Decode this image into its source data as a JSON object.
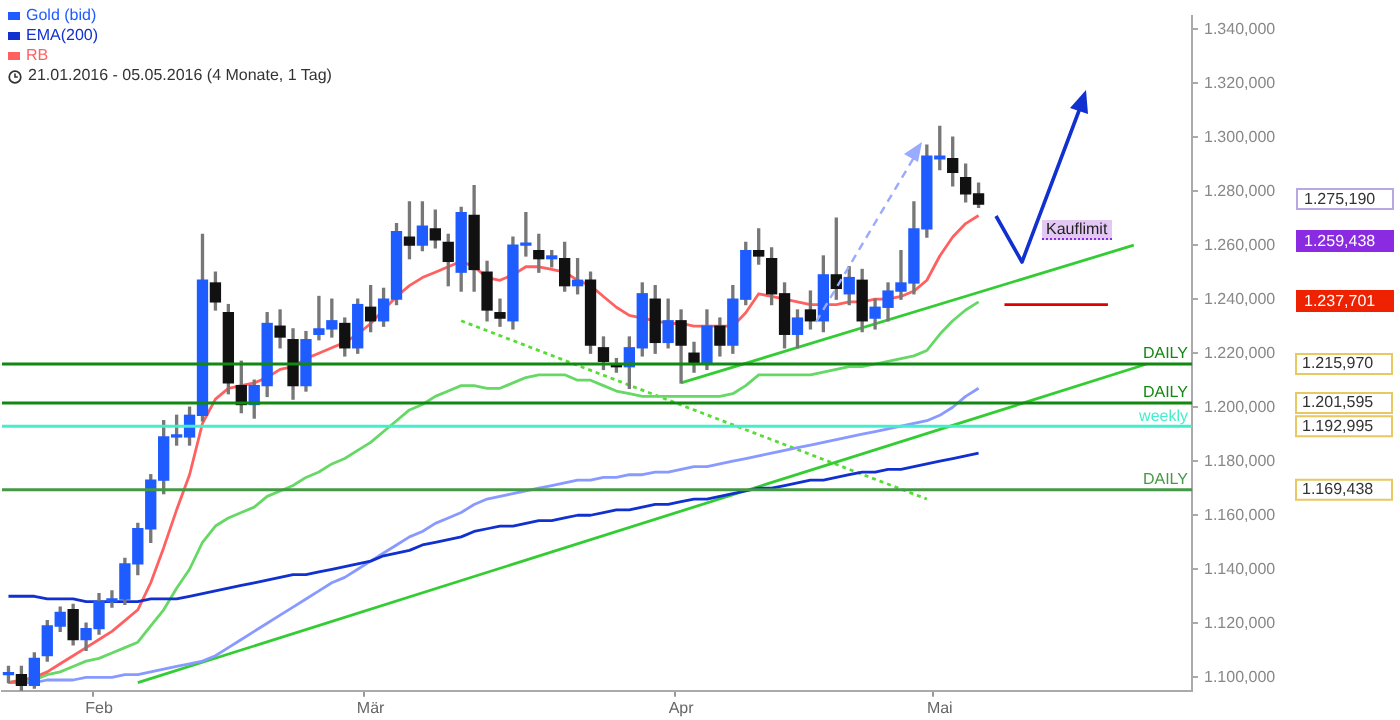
{
  "chart_data": {
    "type": "candlestick",
    "subtitle": "21.01.2016 - 05.05.2016 (4 Monate, 1 Tag)",
    "legend": "top left",
    "categories": [
      null,
      null,
      null,
      null,
      null,
      null,
      null,
      "Feb",
      null,
      null,
      null,
      null,
      null,
      null,
      null,
      null,
      null,
      null,
      null,
      null,
      null,
      null,
      null,
      null,
      null,
      null,
      null,
      null,
      "Mär",
      null,
      null,
      null,
      null,
      null,
      null,
      null,
      null,
      null,
      null,
      null,
      null,
      null,
      null,
      null,
      null,
      null,
      null,
      null,
      null,
      null,
      null,
      null,
      "Apr",
      null,
      null,
      null,
      null,
      null,
      null,
      null,
      null,
      null,
      null,
      null,
      null,
      null,
      null,
      null,
      null,
      null,
      null,
      null,
      "Mai",
      null,
      null,
      null,
      null,
      null,
      null,
      null,
      null,
      null,
      null,
      null,
      null,
      null,
      null,
      null,
      null,
      null,
      null,
      null
    ],
    "ylim": [
      1095,
      1345
    ],
    "yticks": [
      {
        "value": 1100,
        "label": "1.100,000"
      },
      {
        "value": 1120,
        "label": "1.120,000"
      },
      {
        "value": 1140,
        "label": "1.140,000"
      },
      {
        "value": 1160,
        "label": "1.160,000"
      },
      {
        "value": 1180,
        "label": "1.180,000"
      },
      {
        "value": 1200,
        "label": "1.200,000"
      },
      {
        "value": 1220,
        "label": "1.220,000"
      },
      {
        "value": 1240,
        "label": "1.240,000"
      },
      {
        "value": 1260,
        "label": "1.260,000"
      },
      {
        "value": 1280,
        "label": "1.280,000"
      },
      {
        "value": 1300,
        "label": "1.300,000"
      },
      {
        "value": 1320,
        "label": "1.320,000"
      },
      {
        "value": 1340,
        "label": "1.340,000"
      }
    ],
    "series": [
      {
        "name": "Gold (bid)",
        "type": "candlestick",
        "color": "#1f5cff",
        "colors": [
          "#1f5cff",
          "#111111",
          "#1f5cff",
          "#1f5cff",
          "#1f5cff",
          "#111111",
          "#1f5cff",
          "#1f5cff",
          "#1f5cff",
          "#1f5cff",
          "#1f5cff",
          "#1f5cff",
          "#1f5cff",
          "#1f5cff",
          "#1f5cff",
          "#1f5cff",
          "#111111",
          "#111111",
          "#111111",
          "#1f5cff",
          "#1f5cff",
          "#111111",
          "#111111",
          "#1f5cff",
          "#1f5cff",
          "#1f5cff",
          "#111111",
          "#1f5cff",
          "#111111",
          "#1f5cff",
          "#1f5cff",
          "#111111",
          "#1f5cff",
          "#111111",
          "#111111",
          "#1f5cff",
          "#111111",
          "#111111",
          "#111111",
          "#1f5cff",
          "#1f5cff",
          "#111111",
          "#1f5cff",
          "#111111",
          "#1f5cff",
          "#111111",
          "#111111",
          "#111111",
          "#1f5cff",
          "#1f5cff",
          "#111111",
          "#1f5cff",
          "#111111",
          "#111111",
          "#1f5cff",
          "#111111",
          "#1f5cff",
          "#1f5cff",
          "#111111",
          "#111111",
          "#111111",
          "#1f5cff",
          "#111111",
          "#1f5cff",
          "#111111",
          "#1f5cff",
          "#111111",
          "#1f5cff",
          "#1f5cff",
          "#1f5cff",
          "#1f5cff",
          "#1f5cff",
          "#1f5cff",
          "#111111",
          "#111111",
          "#111111",
          null,
          null,
          null,
          null,
          null,
          null,
          null,
          null,
          null,
          null,
          null,
          null,
          null,
          null,
          null,
          null
        ],
        "ohlc": [
          [
            1101,
            1104,
            1098,
            1101
          ],
          [
            1101,
            1104,
            1094,
            1097
          ],
          [
            1097,
            1109,
            1096,
            1107
          ],
          [
            1108,
            1121,
            1106,
            1119
          ],
          [
            1119,
            1126,
            1117,
            1124
          ],
          [
            1125,
            1127,
            1112,
            1114
          ],
          [
            1114,
            1120,
            1110,
            1118
          ],
          [
            1118,
            1131,
            1116,
            1128
          ],
          [
            1128,
            1132,
            1126,
            1129
          ],
          [
            1129,
            1144,
            1127,
            1142
          ],
          [
            1142,
            1157,
            1138,
            1155
          ],
          [
            1155,
            1175,
            1150,
            1173
          ],
          [
            1173,
            1195,
            1168,
            1189
          ],
          [
            1189,
            1197,
            1186,
            1189
          ],
          [
            1189,
            1200,
            1186,
            1197
          ],
          [
            1197,
            1264,
            1195,
            1247
          ],
          [
            1246,
            1250,
            1236,
            1239
          ],
          [
            1235,
            1238,
            1205,
            1209
          ],
          [
            1208,
            1217,
            1198,
            1201
          ],
          [
            1201,
            1210,
            1196,
            1208
          ],
          [
            1208,
            1235,
            1204,
            1231
          ],
          [
            1230,
            1236,
            1222,
            1226
          ],
          [
            1225,
            1229,
            1203,
            1208
          ],
          [
            1208,
            1228,
            1206,
            1225
          ],
          [
            1227,
            1241,
            1225,
            1229
          ],
          [
            1229,
            1240,
            1226,
            1232
          ],
          [
            1231,
            1233,
            1219,
            1222
          ],
          [
            1222,
            1240,
            1220,
            1238
          ],
          [
            1237,
            1245,
            1228,
            1232
          ],
          [
            1232,
            1244,
            1230,
            1240
          ],
          [
            1240,
            1268,
            1238,
            1265
          ],
          [
            1263,
            1276,
            1255,
            1260
          ],
          [
            1260,
            1276,
            1258,
            1267
          ],
          [
            1266,
            1273,
            1259,
            1262
          ],
          [
            1261,
            1264,
            1245,
            1254
          ],
          [
            1250,
            1274,
            1243,
            1272
          ],
          [
            1271,
            1282,
            1243,
            1251
          ],
          [
            1250,
            1254,
            1232,
            1236
          ],
          [
            1235,
            1240,
            1230,
            1233
          ],
          [
            1232,
            1263,
            1229,
            1260
          ],
          [
            1260,
            1272,
            1256,
            1260
          ],
          [
            1258,
            1264,
            1250,
            1255
          ],
          [
            1255,
            1258,
            1252,
            1256
          ],
          [
            1255,
            1261,
            1243,
            1245
          ],
          [
            1245,
            1255,
            1242,
            1247
          ],
          [
            1247,
            1250,
            1220,
            1223
          ],
          [
            1222,
            1226,
            1214,
            1217
          ],
          [
            1216,
            1218,
            1213,
            1215
          ],
          [
            1215,
            1226,
            1207,
            1222
          ],
          [
            1222,
            1246,
            1219,
            1242
          ],
          [
            1240,
            1245,
            1220,
            1224
          ],
          [
            1224,
            1240,
            1222,
            1232
          ],
          [
            1232,
            1236,
            1209,
            1223
          ],
          [
            1220,
            1224,
            1213,
            1216
          ],
          [
            1216,
            1236,
            1214,
            1230
          ],
          [
            1230,
            1233,
            1219,
            1223
          ],
          [
            1223,
            1245,
            1220,
            1240
          ],
          [
            1240,
            1261,
            1238,
            1258
          ],
          [
            1258,
            1266,
            1253,
            1256
          ],
          [
            1255,
            1259,
            1238,
            1242
          ],
          [
            1242,
            1246,
            1222,
            1227
          ],
          [
            1227,
            1236,
            1222,
            1233
          ],
          [
            1236,
            1243,
            1229,
            1232
          ],
          [
            1232,
            1256,
            1228,
            1249
          ],
          [
            1249,
            1270,
            1240,
            1244
          ],
          [
            1242,
            1252,
            1238,
            1248
          ],
          [
            1247,
            1251,
            1228,
            1232
          ],
          [
            1233,
            1240,
            1229,
            1237
          ],
          [
            1237,
            1246,
            1232,
            1243
          ],
          [
            1243,
            1258,
            1240,
            1246
          ],
          [
            1246,
            1276,
            1242,
            1266
          ],
          [
            1266,
            1297,
            1263,
            1293
          ],
          [
            1292,
            1304,
            1288,
            1293
          ],
          [
            1292,
            1300,
            1282,
            1287
          ],
          [
            1285,
            1290,
            1276,
            1279
          ],
          [
            1279,
            1283,
            1274,
            1275.19
          ],
          null,
          null,
          null,
          null,
          null,
          null,
          null,
          null,
          null,
          null,
          null,
          null,
          null,
          null,
          null,
          null
        ]
      },
      {
        "name": "EMA(200)",
        "type": "line",
        "color": "#1030d0",
        "values": [
          1130,
          1130,
          1130,
          1129,
          1129,
          1129,
          1128,
          1128,
          1128,
          1128,
          1128,
          1129,
          1129,
          1129,
          1130,
          1131,
          1132,
          1133,
          1134,
          1135,
          1136,
          1137,
          1138,
          1138,
          1139,
          1140,
          1141,
          1142,
          1143,
          1145,
          1146,
          1147,
          1149,
          1150,
          1151,
          1152,
          1154,
          1155,
          1156,
          1156,
          1157,
          1158,
          1158,
          1159,
          1160,
          1160,
          1161,
          1162,
          1162,
          1163,
          1164,
          1164,
          1165,
          1166,
          1166,
          1167,
          1168,
          1169,
          1170,
          1170,
          1171,
          1172,
          1173,
          1173,
          1174,
          1175,
          1176,
          1176,
          1177,
          1177,
          1178,
          1179,
          1180,
          1181,
          1182,
          1183,
          null,
          null,
          null,
          null,
          null,
          null,
          null,
          null,
          null,
          null,
          null,
          null,
          null,
          null,
          null,
          null
        ]
      },
      {
        "name": "RB",
        "type": "line",
        "color": "#ff6060",
        "values": [
          1098,
          1099,
          1100,
          1102,
          1105,
          1108,
          1111,
          1114,
          1117,
          1121,
          1125,
          1135,
          1148,
          1162,
          1175,
          1194,
          1203,
          1207,
          1208,
          1209,
          1211,
          1214,
          1215,
          1218,
          1220,
          1222,
          1224,
          1227,
          1231,
          1236,
          1241,
          1245,
          1248,
          1250,
          1252,
          1254,
          1252,
          1248,
          1247,
          1249,
          1252,
          1252,
          1251,
          1250,
          1247,
          1245,
          1241,
          1237,
          1234,
          1233,
          1232,
          1231,
          1231,
          1230,
          1230,
          1230,
          1230,
          1235,
          1242,
          1241,
          1240,
          1239,
          1238,
          1238,
          1238,
          1239,
          1239,
          1240,
          1240,
          1241,
          1243,
          1247,
          1256,
          1263,
          1268,
          1271,
          null,
          null,
          null,
          null,
          null,
          null,
          null,
          null,
          null,
          null,
          null,
          null,
          null,
          null,
          null,
          null
        ]
      },
      {
        "type": "line",
        "color": "#66d866",
        "values": [
          1098,
          1099,
          1099,
          1101,
          1102,
          1104,
          1106,
          1107,
          1109,
          1111,
          1113,
          1119,
          1125,
          1133,
          1140,
          1150,
          1156,
          1159,
          1161,
          1163,
          1167,
          1169,
          1171,
          1174,
          1176,
          1179,
          1181,
          1184,
          1187,
          1191,
          1195,
          1199,
          1201,
          1204,
          1206,
          1208,
          1208,
          1207,
          1207,
          1209,
          1211,
          1212,
          1212,
          1212,
          1210,
          1210,
          1208,
          1206,
          1205,
          1204,
          1204,
          1204,
          1204,
          1204,
          1204,
          1204,
          1205,
          1208,
          1212,
          1212,
          1212,
          1212,
          1212,
          1213,
          1214,
          1215,
          1215,
          1216,
          1217,
          1218,
          1219,
          1221,
          1227,
          1232,
          1236,
          1239,
          null,
          null,
          null,
          null,
          null,
          null,
          null,
          null,
          null,
          null,
          null,
          null,
          null,
          null,
          null,
          null
        ]
      },
      {
        "type": "line",
        "color": "#8899ff",
        "values": [
          1098,
          1098,
          1098,
          1099,
          1099,
          1099,
          1100,
          1100,
          1100,
          1101,
          1101,
          1102,
          1103,
          1104,
          1105,
          1106,
          1108,
          1111,
          1114,
          1117,
          1120,
          1123,
          1126,
          1129,
          1132,
          1135,
          1137,
          1140,
          1143,
          1146,
          1149,
          1152,
          1154,
          1157,
          1159,
          1161,
          1164,
          1166,
          1167,
          1168,
          1169,
          1170,
          1171,
          1172,
          1173,
          1173,
          1174,
          1174,
          1175,
          1175,
          1176,
          1176,
          1177,
          1178,
          1178,
          1179,
          1180,
          1181,
          1182,
          1183,
          1184,
          1185,
          1186,
          1187,
          1188,
          1189,
          1190,
          1191,
          1192,
          1193,
          1194,
          1195,
          1197,
          1200,
          1204,
          1207,
          null,
          null,
          null,
          null,
          null,
          null,
          null,
          null,
          null,
          null,
          null,
          null,
          null,
          null,
          null,
          null
        ]
      },
      {
        "type": "line",
        "color": "#33cc33",
        "values": [
          null,
          null,
          null,
          null,
          null,
          null,
          null,
          null,
          null,
          null,
          1098,
          null,
          null,
          null,
          null,
          null,
          null,
          null,
          null,
          null,
          null,
          null,
          null,
          null,
          null,
          null,
          null,
          null,
          null,
          null,
          null,
          null,
          null,
          null,
          null,
          null,
          null,
          null,
          null,
          null,
          null,
          null,
          null,
          null,
          null,
          null,
          null,
          null,
          null,
          null,
          null,
          null,
          null,
          null,
          null,
          null,
          null,
          null,
          null,
          null,
          null,
          null,
          null,
          null,
          null,
          null,
          null,
          null,
          null,
          null,
          null,
          null,
          null,
          null,
          null,
          null,
          null,
          null,
          null,
          null,
          null,
          null,
          null,
          null,
          null,
          null,
          null,
          null,
          1216,
          null,
          null,
          null
        ]
      },
      {
        "type": "line",
        "color": "#33cc33",
        "values": [
          null,
          null,
          null,
          null,
          null,
          null,
          null,
          null,
          null,
          null,
          null,
          null,
          null,
          null,
          null,
          null,
          null,
          null,
          null,
          null,
          null,
          null,
          null,
          null,
          null,
          null,
          null,
          null,
          null,
          null,
          null,
          null,
          null,
          null,
          null,
          null,
          null,
          null,
          null,
          null,
          null,
          null,
          null,
          null,
          null,
          null,
          null,
          null,
          null,
          null,
          null,
          null,
          1209,
          null,
          null,
          null,
          null,
          null,
          null,
          null,
          null,
          null,
          null,
          null,
          null,
          null,
          null,
          null,
          null,
          null,
          null,
          null,
          null,
          null,
          null,
          null,
          null,
          null,
          null,
          null,
          null,
          null,
          null,
          null,
          null,
          null,
          null,
          1260,
          null,
          null,
          null,
          null
        ]
      },
      {
        "type": "line",
        "color": "#55dd33",
        "line_style": "dotted",
        "values": [
          null,
          null,
          null,
          null,
          null,
          null,
          null,
          null,
          null,
          null,
          null,
          null,
          null,
          null,
          null,
          null,
          null,
          null,
          null,
          null,
          null,
          null,
          null,
          null,
          null,
          null,
          null,
          null,
          null,
          null,
          null,
          null,
          null,
          null,
          null,
          1232,
          null,
          null,
          null,
          null,
          null,
          null,
          null,
          null,
          null,
          null,
          null,
          null,
          null,
          null,
          null,
          null,
          null,
          null,
          null,
          null,
          null,
          null,
          null,
          null,
          null,
          null,
          null,
          null,
          null,
          null,
          null,
          null,
          null,
          null,
          null,
          1166,
          null,
          null,
          null,
          null,
          null,
          null,
          null,
          null,
          null,
          null,
          null,
          null,
          null,
          null,
          null,
          null,
          null,
          null,
          null,
          null
        ]
      },
      {
        "type": "line",
        "color": "#e00000",
        "values": [
          null,
          null,
          null,
          null,
          null,
          null,
          null,
          null,
          null,
          null,
          null,
          null,
          null,
          null,
          null,
          null,
          null,
          null,
          null,
          null,
          null,
          null,
          null,
          null,
          null,
          null,
          null,
          null,
          null,
          null,
          null,
          null,
          null,
          null,
          null,
          null,
          null,
          null,
          null,
          null,
          null,
          null,
          null,
          null,
          null,
          null,
          null,
          null,
          null,
          null,
          null,
          null,
          null,
          null,
          null,
          null,
          null,
          null,
          null,
          null,
          null,
          null,
          null,
          null,
          null,
          null,
          null,
          null,
          null,
          null,
          null,
          null,
          null,
          null,
          null,
          null,
          null,
          1238,
          null,
          null,
          null,
          null,
          null,
          null,
          null,
          1238,
          null,
          null,
          null,
          null,
          null,
          null
        ]
      }
    ],
    "ref_lines": [
      {
        "axis": "y",
        "value": 1215.97,
        "label": "DAILY",
        "color": "#118811"
      },
      {
        "axis": "y",
        "value": 1201.595,
        "label": "DAILY",
        "color": "#118811"
      },
      {
        "axis": "y",
        "value": 1192.995,
        "label": "weekly",
        "color": "#44eecc"
      },
      {
        "axis": "y",
        "value": 1169.438,
        "label": "DAILY",
        "color": "#449944"
      }
    ],
    "annotations": [
      "Kauflimit",
      "1.275,190",
      "1.259,438",
      "1.237,701",
      "1.215,970",
      "1.201,595",
      "1.192,995",
      "1.169,438"
    ]
  }
}
